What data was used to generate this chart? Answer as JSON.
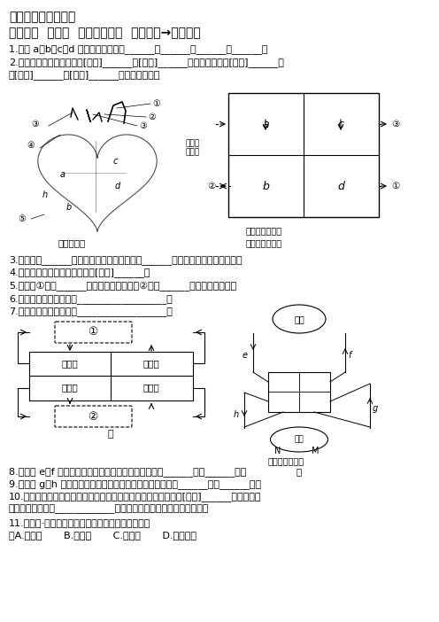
{
  "title": "人教版七下生物试题",
  "subtitle": "第四单元  第四章  人体物质运输  心脏结构→血液循环",
  "bg_color": "#ffffff",
  "text_color": "#000000",
  "questions": [
    "1.图中 a、b、c、d 代表的腔室分别是______，______，______，______。",
    "2.心脏腔室所连的血管中，[　　]______和[　　]______内均流动脉血；[　　]______，",
    "　[　　]______，[　　]______内均流静脉血。",
    "3.心脏中的______保证血液由心房流向心室，______保证血液由心室流向动脉。",
    "4.心脏各腔室中心脏壁最厚的是[　　]______。",
    "",
    "5.图甲中①代表______周围的毛细血管网，②代表______处的毛细血管网。",
    "6.图甲中体循环的过程：__________________。",
    "7.图甲中肺循环的过程：__________________。",
    "",
    "8.图乙中 e、f 为肺泡两侧的血管，其内流的血液分别是______血和______血。",
    "9.图乙中 g、h 为组织细胞两侧的血管，其内流的血液分别是______血和______血。",
    "10.某人患扁桃腺炎，对其静脉注射消炎药，药物最先进入心脏的[　　]______依次流经心",
    "　脏腔室的顺序是____________（用图乙中字母和箭头方式表示）。",
    "11.（中考·注目）与右心室相连接的血管是（　　）",
    "　A.主动脉       B.肺静脉       C.肺动脉       D.上腔静脉"
  ],
  "heart_diagram_labels": {
    "numbers": [
      "①",
      "②",
      "③",
      "③",
      "⑤"
    ],
    "letters": [
      "a",
      "b",
      "c",
      "d",
      "h"
    ],
    "caption1": "心脏解剖图",
    "caption2": "心脏结构变式图",
    "caption3": "心脏结构示意图"
  },
  "box_diagram": {
    "top_left": "上、下\n腔静脉",
    "cell_a": "a",
    "cell_b": "b",
    "cell_c": "c",
    "cell_d": "d",
    "label1": "②",
    "label2": "③",
    "label3": "①"
  },
  "flow_diagram": {
    "box1": "①",
    "box2": "②",
    "left_top": "右心房",
    "left_bottom": "右心室",
    "right_top": "左心房",
    "right_bottom": "左心室",
    "caption": "甲"
  }
}
